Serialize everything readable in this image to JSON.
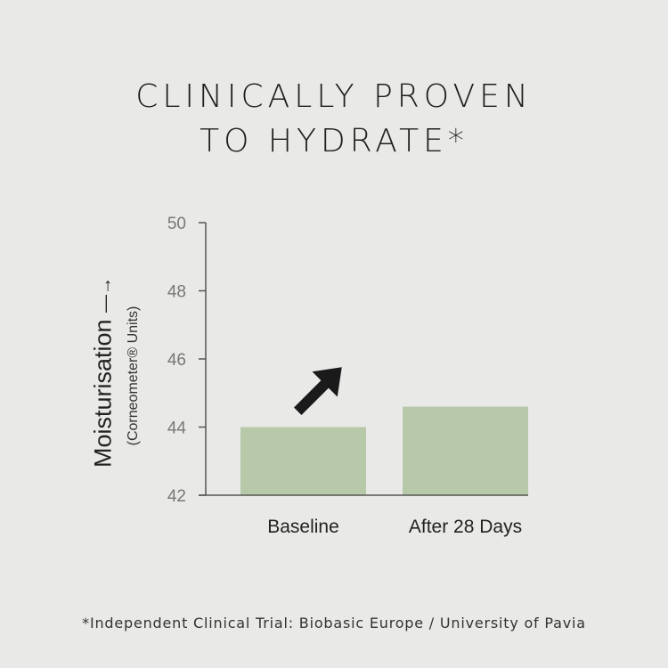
{
  "title": {
    "line1": "CLINICALLY PROVEN",
    "line2": "TO HYDRATE*"
  },
  "footnote": "*Independent Clinical Trial: Biobasic Europe / University of Pavia",
  "colors": {
    "background": "#e9e9e7",
    "bar": "#b8c9aa",
    "axis": "#555555",
    "arrow": "#1a1a1a"
  },
  "chart_data": {
    "type": "bar",
    "categories": [
      "Baseline",
      "After 28 Days"
    ],
    "values": [
      44.0,
      44.6
    ],
    "ylabel": "Moisturisation",
    "ylabel_sub": "(Corneometer® Units)",
    "ylim": [
      42,
      50
    ],
    "yticks": [
      42,
      44,
      46,
      48,
      50
    ],
    "grid": false,
    "annotation": "arrow-up-right-icon"
  }
}
